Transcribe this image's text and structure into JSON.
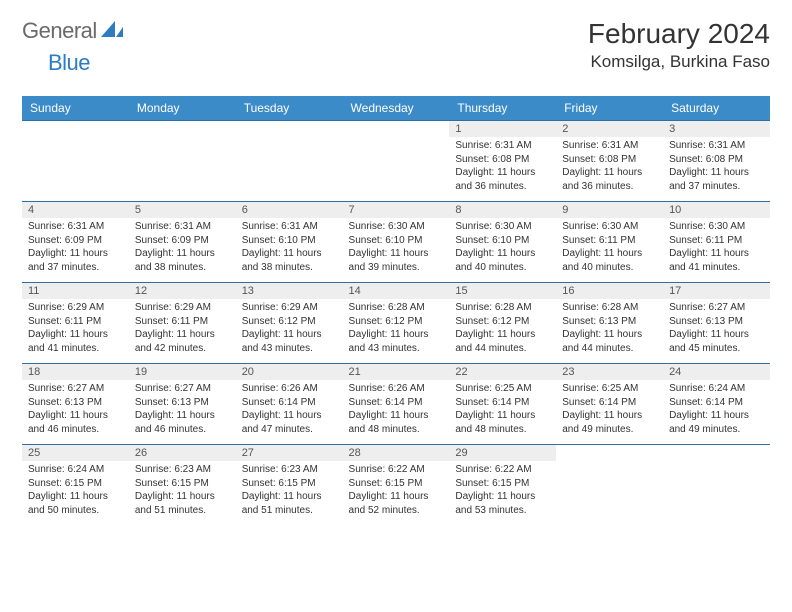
{
  "logo": {
    "text1": "General",
    "text2": "Blue"
  },
  "title": "February 2024",
  "location": "Komsilga, Burkina Faso",
  "colors": {
    "header_bg": "#3b8bc9",
    "header_text": "#ffffff",
    "num_bg": "#eeeeee",
    "rule": "#2d6fa3",
    "logo_gray": "#6a6a6a",
    "logo_blue": "#2d7cc1"
  },
  "dow": [
    "Sunday",
    "Monday",
    "Tuesday",
    "Wednesday",
    "Thursday",
    "Friday",
    "Saturday"
  ],
  "weeks": [
    [
      null,
      null,
      null,
      null,
      {
        "n": "1",
        "sr": "6:31 AM",
        "ss": "6:08 PM",
        "dl": "11 hours and 36 minutes."
      },
      {
        "n": "2",
        "sr": "6:31 AM",
        "ss": "6:08 PM",
        "dl": "11 hours and 36 minutes."
      },
      {
        "n": "3",
        "sr": "6:31 AM",
        "ss": "6:08 PM",
        "dl": "11 hours and 37 minutes."
      }
    ],
    [
      {
        "n": "4",
        "sr": "6:31 AM",
        "ss": "6:09 PM",
        "dl": "11 hours and 37 minutes."
      },
      {
        "n": "5",
        "sr": "6:31 AM",
        "ss": "6:09 PM",
        "dl": "11 hours and 38 minutes."
      },
      {
        "n": "6",
        "sr": "6:31 AM",
        "ss": "6:10 PM",
        "dl": "11 hours and 38 minutes."
      },
      {
        "n": "7",
        "sr": "6:30 AM",
        "ss": "6:10 PM",
        "dl": "11 hours and 39 minutes."
      },
      {
        "n": "8",
        "sr": "6:30 AM",
        "ss": "6:10 PM",
        "dl": "11 hours and 40 minutes."
      },
      {
        "n": "9",
        "sr": "6:30 AM",
        "ss": "6:11 PM",
        "dl": "11 hours and 40 minutes."
      },
      {
        "n": "10",
        "sr": "6:30 AM",
        "ss": "6:11 PM",
        "dl": "11 hours and 41 minutes."
      }
    ],
    [
      {
        "n": "11",
        "sr": "6:29 AM",
        "ss": "6:11 PM",
        "dl": "11 hours and 41 minutes."
      },
      {
        "n": "12",
        "sr": "6:29 AM",
        "ss": "6:11 PM",
        "dl": "11 hours and 42 minutes."
      },
      {
        "n": "13",
        "sr": "6:29 AM",
        "ss": "6:12 PM",
        "dl": "11 hours and 43 minutes."
      },
      {
        "n": "14",
        "sr": "6:28 AM",
        "ss": "6:12 PM",
        "dl": "11 hours and 43 minutes."
      },
      {
        "n": "15",
        "sr": "6:28 AM",
        "ss": "6:12 PM",
        "dl": "11 hours and 44 minutes."
      },
      {
        "n": "16",
        "sr": "6:28 AM",
        "ss": "6:13 PM",
        "dl": "11 hours and 44 minutes."
      },
      {
        "n": "17",
        "sr": "6:27 AM",
        "ss": "6:13 PM",
        "dl": "11 hours and 45 minutes."
      }
    ],
    [
      {
        "n": "18",
        "sr": "6:27 AM",
        "ss": "6:13 PM",
        "dl": "11 hours and 46 minutes."
      },
      {
        "n": "19",
        "sr": "6:27 AM",
        "ss": "6:13 PM",
        "dl": "11 hours and 46 minutes."
      },
      {
        "n": "20",
        "sr": "6:26 AM",
        "ss": "6:14 PM",
        "dl": "11 hours and 47 minutes."
      },
      {
        "n": "21",
        "sr": "6:26 AM",
        "ss": "6:14 PM",
        "dl": "11 hours and 48 minutes."
      },
      {
        "n": "22",
        "sr": "6:25 AM",
        "ss": "6:14 PM",
        "dl": "11 hours and 48 minutes."
      },
      {
        "n": "23",
        "sr": "6:25 AM",
        "ss": "6:14 PM",
        "dl": "11 hours and 49 minutes."
      },
      {
        "n": "24",
        "sr": "6:24 AM",
        "ss": "6:14 PM",
        "dl": "11 hours and 49 minutes."
      }
    ],
    [
      {
        "n": "25",
        "sr": "6:24 AM",
        "ss": "6:15 PM",
        "dl": "11 hours and 50 minutes."
      },
      {
        "n": "26",
        "sr": "6:23 AM",
        "ss": "6:15 PM",
        "dl": "11 hours and 51 minutes."
      },
      {
        "n": "27",
        "sr": "6:23 AM",
        "ss": "6:15 PM",
        "dl": "11 hours and 51 minutes."
      },
      {
        "n": "28",
        "sr": "6:22 AM",
        "ss": "6:15 PM",
        "dl": "11 hours and 52 minutes."
      },
      {
        "n": "29",
        "sr": "6:22 AM",
        "ss": "6:15 PM",
        "dl": "11 hours and 53 minutes."
      },
      null,
      null
    ]
  ],
  "labels": {
    "sunrise": "Sunrise:",
    "sunset": "Sunset:",
    "daylight": "Daylight:"
  }
}
